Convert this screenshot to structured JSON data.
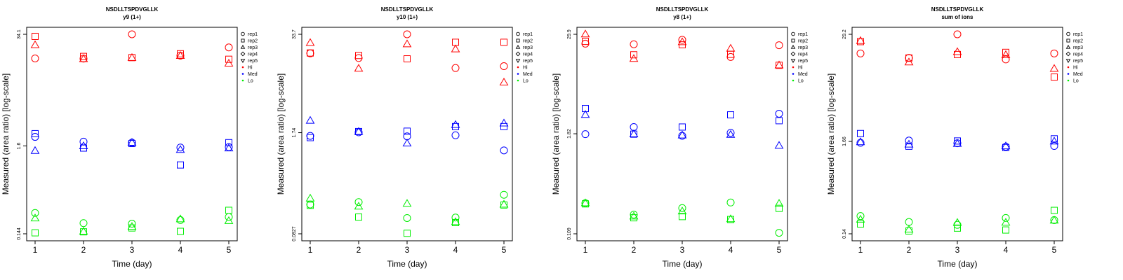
{
  "colors": {
    "Hi": "#ff0000",
    "Med": "#0000ff",
    "Lo": "#00ee00"
  },
  "legend": {
    "shape_entries": [
      {
        "label": "rep1",
        "shape": "circle"
      },
      {
        "label": "rep2",
        "shape": "square"
      },
      {
        "label": "rep3",
        "shape": "triangle-up"
      },
      {
        "label": "rep4",
        "shape": "diamond"
      },
      {
        "label": "rep5",
        "shape": "triangle-down"
      }
    ],
    "color_entries": [
      {
        "label": "Hi",
        "color_key": "Hi"
      },
      {
        "label": "Med",
        "color_key": "Med"
      },
      {
        "label": "Lo",
        "color_key": "Lo"
      }
    ]
  },
  "chart_data": [
    {
      "type": "scatter",
      "title": "NSDLLTSPDVGLLK",
      "subtitle": "y9 (1+)",
      "xlabel": "Time (day)",
      "ylabel": "Measured (area ratio) [log-scale]",
      "xlim": [
        1,
        5
      ],
      "x_ticks": [
        "1",
        "2",
        "3",
        "4",
        "5"
      ],
      "y_scale": "log",
      "ylim": [
        0.144,
        34.1
      ],
      "y_ticks": [
        "0.144",
        "1.6",
        "34.1"
      ],
      "grid": false,
      "legend_position": "right",
      "series": [
        {
          "level": "Hi",
          "rep": "rep1",
          "x": [
            1,
            2,
            3,
            4,
            5
          ],
          "y": [
            17.6,
            17.5,
            34.1,
            19.0,
            23.8
          ]
        },
        {
          "level": "Hi",
          "rep": "rep2",
          "x": [
            1,
            2,
            3,
            4,
            5
          ],
          "y": [
            32.2,
            18.6,
            18.0,
            20.0,
            17.2
          ]
        },
        {
          "level": "Hi",
          "rep": "rep3",
          "x": [
            1,
            2,
            3,
            4,
            5
          ],
          "y": [
            25.4,
            17.3,
            17.9,
            18.9,
            15.3
          ]
        },
        {
          "level": "Med",
          "rep": "rep1",
          "x": [
            1,
            2,
            3,
            4,
            5
          ],
          "y": [
            2.05,
            1.8,
            1.75,
            1.53,
            1.55
          ]
        },
        {
          "level": "Med",
          "rep": "rep2",
          "x": [
            1,
            2,
            3,
            4,
            5
          ],
          "y": [
            2.24,
            1.51,
            1.71,
            0.95,
            1.75
          ]
        },
        {
          "level": "Med",
          "rep": "rep3",
          "x": [
            1,
            2,
            3,
            4,
            5
          ],
          "y": [
            1.4,
            1.59,
            1.75,
            1.44,
            1.5
          ]
        },
        {
          "level": "Lo",
          "rep": "rep1",
          "x": [
            1,
            2,
            3,
            4,
            5
          ],
          "y": [
            0.255,
            0.193,
            0.19,
            0.21,
            0.228
          ]
        },
        {
          "level": "Lo",
          "rep": "rep2",
          "x": [
            1,
            2,
            3,
            4,
            5
          ],
          "y": [
            0.148,
            0.152,
            0.169,
            0.154,
            0.274
          ]
        },
        {
          "level": "Lo",
          "rep": "rep3",
          "x": [
            1,
            2,
            3,
            4,
            5
          ],
          "y": [
            0.22,
            0.153,
            0.175,
            0.215,
            0.205
          ]
        }
      ]
    },
    {
      "type": "scatter",
      "title": "NSDLLTSPDVGLLK",
      "subtitle": "y10 (1+)",
      "xlabel": "Time (day)",
      "ylabel": "Measured (area ratio) [log-scale]",
      "xlim": [
        1,
        5
      ],
      "x_ticks": [
        "1",
        "2",
        "3",
        "4",
        "5"
      ],
      "y_scale": "log",
      "ylim": [
        0.0827,
        33.7
      ],
      "y_ticks": [
        "0.0827",
        "1.74",
        "33.7"
      ],
      "grid": false,
      "legend_position": "right",
      "series": [
        {
          "level": "Hi",
          "rep": "rep1",
          "x": [
            1,
            2,
            3,
            4,
            5
          ],
          "y": [
            19.0,
            16.5,
            33.7,
            12.2,
            12.9
          ]
        },
        {
          "level": "Hi",
          "rep": "rep2",
          "x": [
            1,
            2,
            3,
            4,
            5
          ],
          "y": [
            19.2,
            17.8,
            16.1,
            26.5,
            26.5
          ]
        },
        {
          "level": "Hi",
          "rep": "rep3",
          "x": [
            1,
            2,
            3,
            4,
            5
          ],
          "y": [
            26.0,
            12.0,
            25.0,
            21.5,
            7.9
          ]
        },
        {
          "level": "Med",
          "rep": "rep1",
          "x": [
            1,
            2,
            3,
            4,
            5
          ],
          "y": [
            1.58,
            1.76,
            1.56,
            1.61,
            1.02
          ]
        },
        {
          "level": "Med",
          "rep": "rep2",
          "x": [
            1,
            2,
            3,
            4,
            5
          ],
          "y": [
            1.5,
            1.8,
            1.82,
            2.09,
            2.09
          ]
        },
        {
          "level": "Med",
          "rep": "rep3",
          "x": [
            1,
            2,
            3,
            4,
            5
          ],
          "y": [
            2.5,
            1.79,
            1.26,
            2.2,
            2.3
          ]
        },
        {
          "level": "Lo",
          "rep": "rep1",
          "x": [
            1,
            2,
            3,
            4,
            5
          ],
          "y": [
            0.2,
            0.215,
            0.133,
            0.135,
            0.268
          ]
        },
        {
          "level": "Lo",
          "rep": "rep2",
          "x": [
            1,
            2,
            3,
            4,
            5
          ],
          "y": [
            0.195,
            0.137,
            0.084,
            0.116,
            0.197
          ]
        },
        {
          "level": "Lo",
          "rep": "rep3",
          "x": [
            1,
            2,
            3,
            4,
            5
          ],
          "y": [
            0.24,
            0.188,
            0.205,
            0.118,
            0.2
          ]
        }
      ]
    },
    {
      "type": "scatter",
      "title": "NSDLLTSPDVGLLK",
      "subtitle": "y8 (1+)",
      "xlabel": "Time (day)",
      "ylabel": "Measured (area ratio) [log-scale]",
      "xlim": [
        1,
        5
      ],
      "x_ticks": [
        "1",
        "2",
        "3",
        "4",
        "5"
      ],
      "y_scale": "log",
      "ylim": [
        0.109,
        29.9
      ],
      "y_ticks": [
        "0.109",
        "1.82",
        "29.9"
      ],
      "grid": false,
      "legend_position": "right",
      "series": [
        {
          "level": "Hi",
          "rep": "rep1",
          "x": [
            1,
            2,
            3,
            4,
            5
          ],
          "y": [
            23.0,
            22.6,
            25.6,
            15.8,
            22.0
          ]
        },
        {
          "level": "Hi",
          "rep": "rep2",
          "x": [
            1,
            2,
            3,
            4,
            5
          ],
          "y": [
            24.5,
            16.8,
            22.3,
            17.0,
            12.5
          ]
        },
        {
          "level": "Hi",
          "rep": "rep3",
          "x": [
            1,
            2,
            3,
            4,
            5
          ],
          "y": [
            29.9,
            15.0,
            24.0,
            20.0,
            12.5
          ]
        },
        {
          "level": "Med",
          "rep": "rep1",
          "x": [
            1,
            2,
            3,
            4,
            5
          ],
          "y": [
            1.8,
            2.2,
            1.72,
            1.87,
            3.2
          ]
        },
        {
          "level": "Med",
          "rep": "rep2",
          "x": [
            1,
            2,
            3,
            4,
            5
          ],
          "y": [
            3.7,
            1.8,
            2.2,
            3.1,
            2.63
          ]
        },
        {
          "level": "Med",
          "rep": "rep3",
          "x": [
            1,
            2,
            3,
            4,
            5
          ],
          "y": [
            3.1,
            1.8,
            1.74,
            1.77,
            1.3
          ]
        },
        {
          "level": "Lo",
          "rep": "rep1",
          "x": [
            1,
            2,
            3,
            4,
            5
          ],
          "y": [
            0.258,
            0.187,
            0.225,
            0.263,
            0.112
          ]
        },
        {
          "level": "Lo",
          "rep": "rep2",
          "x": [
            1,
            2,
            3,
            4,
            5
          ],
          "y": [
            0.253,
            0.171,
            0.177,
            0.163,
            0.223
          ]
        },
        {
          "level": "Lo",
          "rep": "rep3",
          "x": [
            1,
            2,
            3,
            4,
            5
          ],
          "y": [
            0.258,
            0.178,
            0.205,
            0.165,
            0.255
          ]
        }
      ]
    },
    {
      "type": "scatter",
      "title": "NSDLLTSPDVGLLK",
      "subtitle": "sum of ions",
      "xlabel": "Time (day)",
      "ylabel": "Measured (area ratio) [log-scale]",
      "xlim": [
        1,
        5
      ],
      "x_ticks": [
        "1",
        "2",
        "3",
        "4",
        "5"
      ],
      "y_scale": "log",
      "ylim": [
        0.14,
        29.2
      ],
      "y_ticks": [
        "0.14",
        "1.66",
        "29.2"
      ],
      "grid": false,
      "legend_position": "right",
      "series": [
        {
          "level": "Hi",
          "rep": "rep1",
          "x": [
            1,
            2,
            3,
            4,
            5
          ],
          "y": [
            17.5,
            15.5,
            29.2,
            14.9,
            17.5
          ]
        },
        {
          "level": "Hi",
          "rep": "rep2",
          "x": [
            1,
            2,
            3,
            4,
            5
          ],
          "y": [
            24.0,
            15.5,
            17.0,
            18.0,
            9.3
          ]
        },
        {
          "level": "Hi",
          "rep": "rep3",
          "x": [
            1,
            2,
            3,
            4,
            5
          ],
          "y": [
            24.5,
            13.8,
            18.2,
            16.8,
            11.6
          ]
        },
        {
          "level": "Med",
          "rep": "rep1",
          "x": [
            1,
            2,
            3,
            4,
            5
          ],
          "y": [
            1.6,
            1.7,
            1.58,
            1.44,
            1.47
          ]
        },
        {
          "level": "Med",
          "rep": "rep2",
          "x": [
            1,
            2,
            3,
            4,
            5
          ],
          "y": [
            2.05,
            1.46,
            1.68,
            1.41,
            1.78
          ]
        },
        {
          "level": "Med",
          "rep": "rep3",
          "x": [
            1,
            2,
            3,
            4,
            5
          ],
          "y": [
            1.63,
            1.53,
            1.56,
            1.46,
            1.66
          ]
        },
        {
          "level": "Lo",
          "rep": "rep1",
          "x": [
            1,
            2,
            3,
            4,
            5
          ],
          "y": [
            0.225,
            0.192,
            0.178,
            0.214,
            0.202
          ]
        },
        {
          "level": "Lo",
          "rep": "rep2",
          "x": [
            1,
            2,
            3,
            4,
            5
          ],
          "y": [
            0.182,
            0.151,
            0.163,
            0.155,
            0.262
          ]
        },
        {
          "level": "Lo",
          "rep": "rep3",
          "x": [
            1,
            2,
            3,
            4,
            5
          ],
          "y": [
            0.205,
            0.157,
            0.188,
            0.189,
            0.2
          ]
        }
      ]
    }
  ]
}
